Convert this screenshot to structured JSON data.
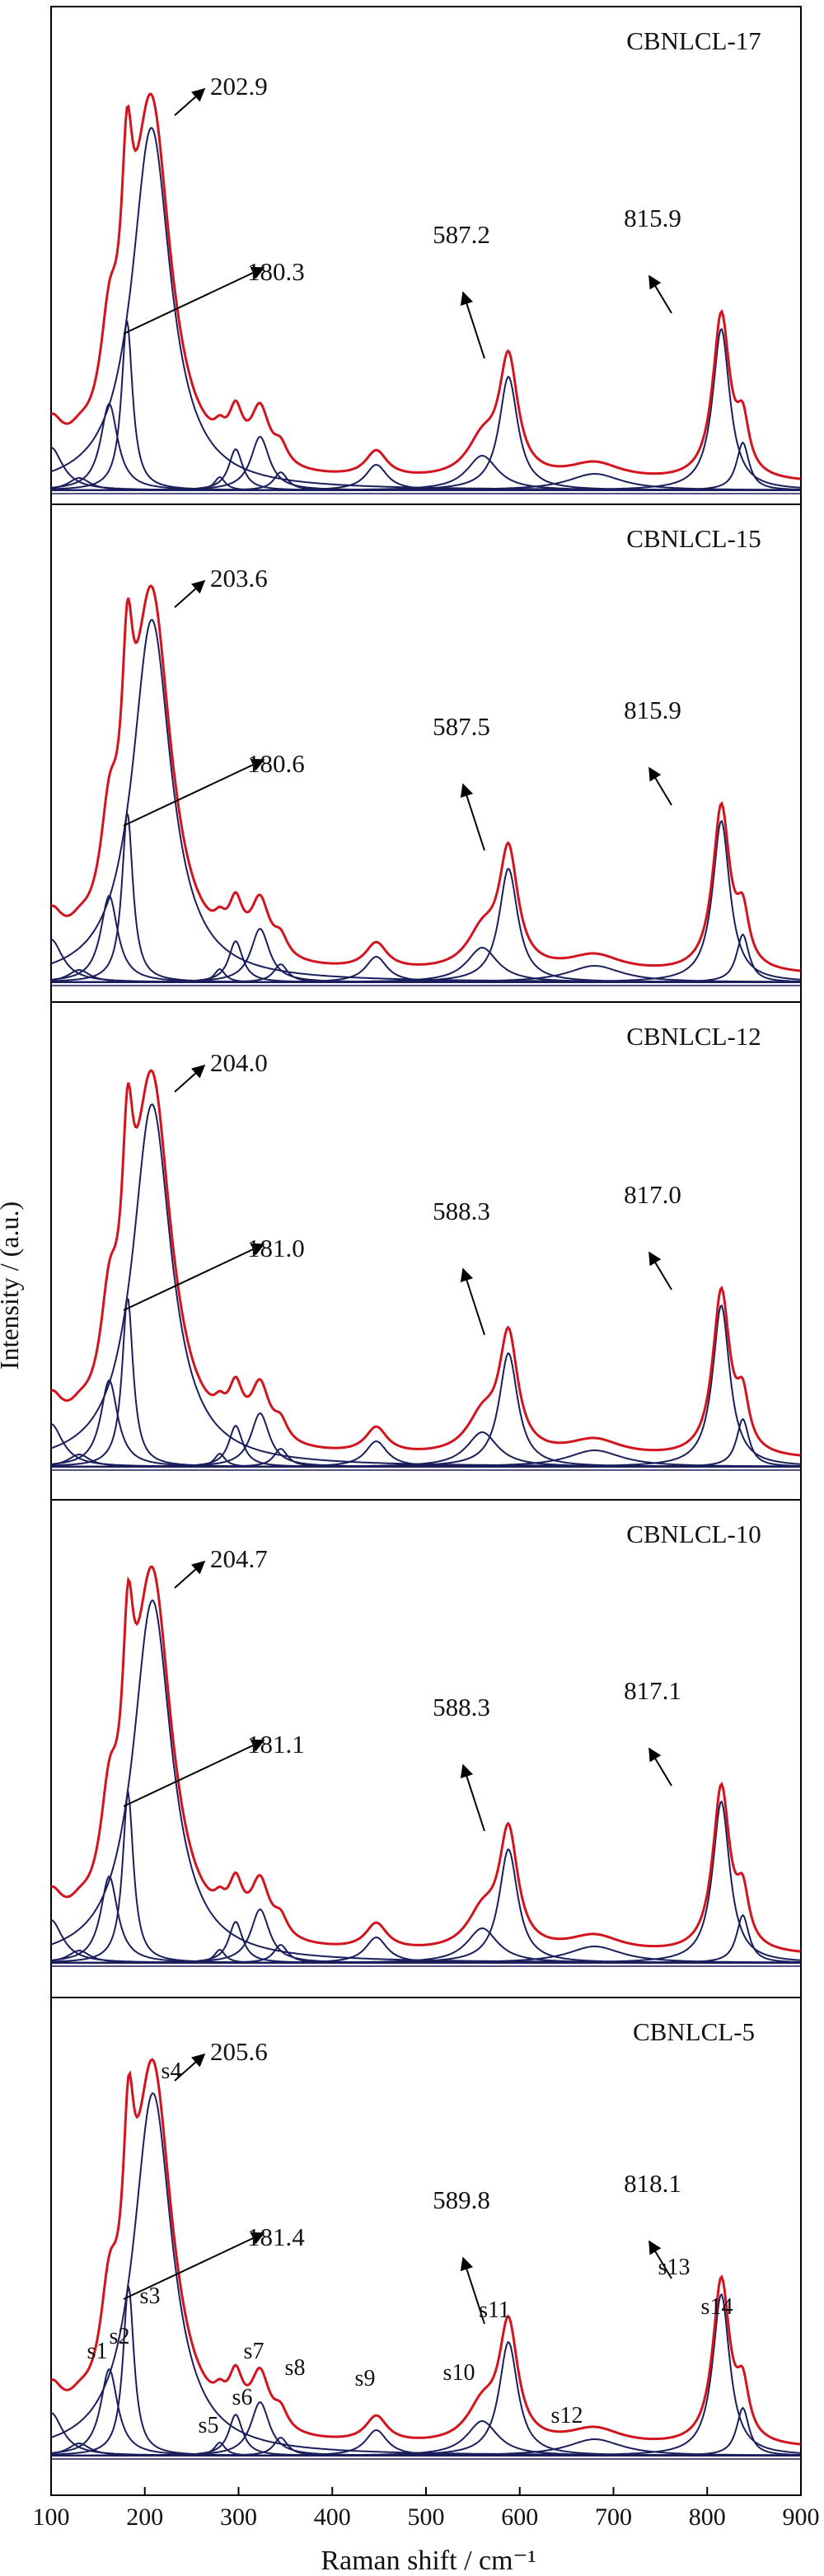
{
  "chart_data": {
    "type": "line",
    "xlabel": "Raman shift / cm⁻¹",
    "ylabel": "Intensity / (a.u.)",
    "xlim": [
      100,
      900
    ],
    "xticks": [
      "100",
      "200",
      "300",
      "400",
      "500",
      "600",
      "700",
      "800",
      "900"
    ],
    "colors": {
      "fit_envelope": "#d2141e",
      "components": "#1a1f5c",
      "axes": "#000000"
    },
    "panels": [
      {
        "title": "CBNLCL-17",
        "peaks": [
          {
            "label": "180.3",
            "x": 180.3
          },
          {
            "label": "202.9",
            "x": 202.9
          },
          {
            "label": "587.2",
            "x": 587.2
          },
          {
            "label": "815.9",
            "x": 815.9
          }
        ]
      },
      {
        "title": "CBNLCL-15",
        "peaks": [
          {
            "label": "180.6",
            "x": 180.6
          },
          {
            "label": "203.6",
            "x": 203.6
          },
          {
            "label": "587.5",
            "x": 587.5
          },
          {
            "label": "815.9",
            "x": 815.9
          }
        ]
      },
      {
        "title": "CBNLCL-12",
        "peaks": [
          {
            "label": "181.0",
            "x": 181.0
          },
          {
            "label": "204.0",
            "x": 204.0
          },
          {
            "label": "588.3",
            "x": 588.3
          },
          {
            "label": "817.0",
            "x": 817.0
          }
        ]
      },
      {
        "title": "CBNLCL-10",
        "peaks": [
          {
            "label": "181.1",
            "x": 181.1
          },
          {
            "label": "204.7",
            "x": 204.7
          },
          {
            "label": "588.3",
            "x": 588.3
          },
          {
            "label": "817.1",
            "x": 817.1
          }
        ]
      },
      {
        "title": "CBNLCL-5",
        "peaks": [
          {
            "label": "181.4",
            "x": 181.4
          },
          {
            "label": "205.6",
            "x": 205.6
          },
          {
            "label": "589.8",
            "x": 589.8
          },
          {
            "label": "818.1",
            "x": 818.1
          }
        ],
        "components": [
          "s1",
          "s2",
          "s3",
          "s4",
          "s5",
          "s6",
          "s7",
          "s8",
          "s9",
          "s10",
          "s11",
          "s12",
          "s13",
          "s14"
        ]
      }
    ]
  }
}
